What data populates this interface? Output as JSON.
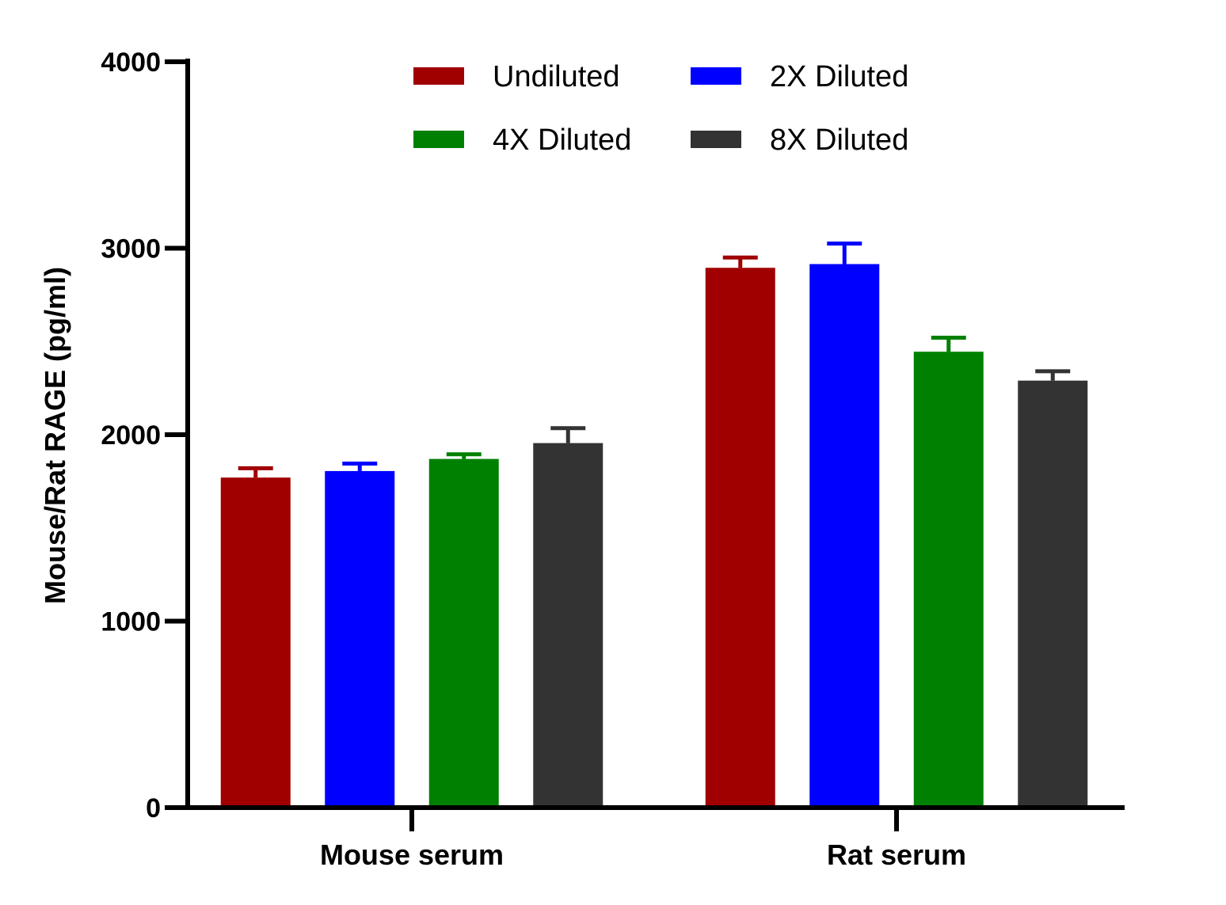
{
  "chart_data": {
    "type": "bar",
    "title": "",
    "xlabel": "",
    "ylabel": "Mouse/Rat RAGE (pg/ml)",
    "ylim": [
      0,
      4000
    ],
    "yticks": [
      "0",
      "1000",
      "2000",
      "3000",
      "4000"
    ],
    "categories": [
      "Mouse serum",
      "Rat serum"
    ],
    "grid": false,
    "legend_position": "top",
    "series": [
      {
        "name": "Undiluted",
        "color": "#a00000",
        "values": [
          1770,
          2895
        ],
        "errors": [
          50,
          55
        ]
      },
      {
        "name": "2X Diluted",
        "color": "#0000ff",
        "values": [
          1805,
          2915
        ],
        "errors": [
          40,
          110
        ]
      },
      {
        "name": "4X Diluted",
        "color": "#008000",
        "values": [
          1870,
          2445
        ],
        "errors": [
          25,
          75
        ]
      },
      {
        "name": "8X Diluted",
        "color": "#333333",
        "values": [
          1955,
          2290
        ],
        "errors": [
          80,
          50
        ]
      }
    ]
  }
}
